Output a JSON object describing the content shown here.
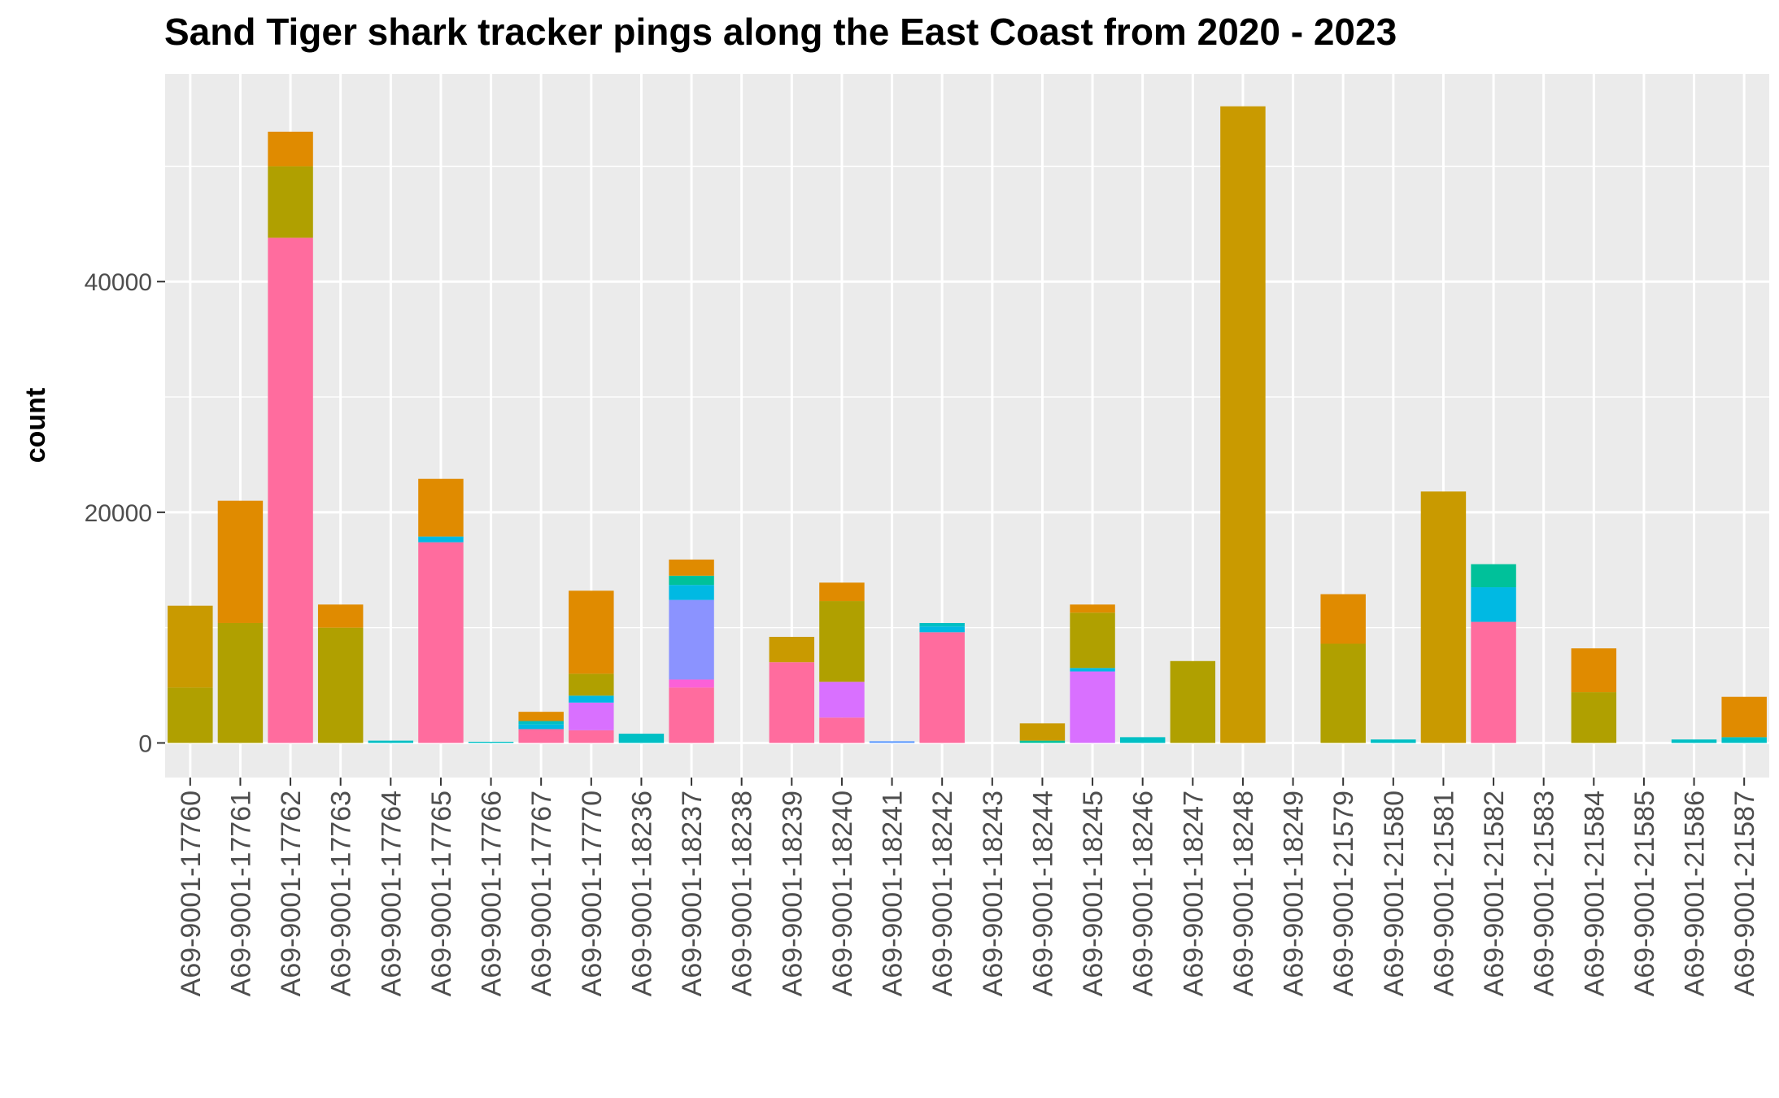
{
  "chart_data": {
    "type": "bar",
    "stacked": true,
    "title": "Sand Tiger shark tracker pings along the East Coast from 2020 - 2023",
    "xlabel": "",
    "ylabel": "count",
    "ylim": [
      -3000,
      58000
    ],
    "yticks": [
      0,
      20000,
      40000
    ],
    "grid": true,
    "legend": "none",
    "categories": [
      "A69-9001-17760",
      "A69-9001-17761",
      "A69-9001-17762",
      "A69-9001-17763",
      "A69-9001-17764",
      "A69-9001-17765",
      "A69-9001-17766",
      "A69-9001-17767",
      "A69-9001-17770",
      "A69-9001-18236",
      "A69-9001-18237",
      "A69-9001-18238",
      "A69-9001-18239",
      "A69-9001-18240",
      "A69-9001-18241",
      "A69-9001-18242",
      "A69-9001-18243",
      "A69-9001-18244",
      "A69-9001-18245",
      "A69-9001-18246",
      "A69-9001-18247",
      "A69-9001-18248",
      "A69-9001-18249",
      "A69-9001-21579",
      "A69-9001-21580",
      "A69-9001-21581",
      "A69-9001-21582",
      "A69-9001-21583",
      "A69-9001-21584",
      "A69-9001-21585",
      "A69-9001-21586",
      "A69-9001-21587"
    ],
    "series": [
      {
        "color": "#FF6C9E",
        "values": [
          0,
          0,
          43800,
          0,
          0,
          17400,
          0,
          1200,
          1100,
          0,
          4800,
          0,
          7000,
          2200,
          0,
          9600,
          0,
          0,
          0,
          0,
          0,
          0,
          0,
          0,
          0,
          0,
          10500,
          0,
          0,
          0,
          0,
          0
        ]
      },
      {
        "color": "#FB61D7",
        "values": [
          0,
          0,
          0,
          0,
          0,
          0,
          0,
          0,
          0,
          0,
          700,
          0,
          0,
          0,
          0,
          0,
          0,
          0,
          0,
          0,
          0,
          0,
          0,
          0,
          0,
          0,
          0,
          0,
          0,
          0,
          0,
          0
        ]
      },
      {
        "color": "#D970FF",
        "values": [
          0,
          0,
          0,
          0,
          0,
          0,
          0,
          0,
          2400,
          0,
          0,
          0,
          0,
          3100,
          0,
          0,
          0,
          0,
          6200,
          0,
          0,
          0,
          0,
          0,
          0,
          0,
          0,
          0,
          0,
          0,
          0,
          0
        ]
      },
      {
        "color": "#8B93FF",
        "values": [
          0,
          0,
          0,
          0,
          0,
          0,
          0,
          0,
          0,
          0,
          6900,
          0,
          0,
          0,
          0,
          0,
          0,
          0,
          0,
          0,
          0,
          0,
          0,
          0,
          0,
          0,
          0,
          0,
          0,
          0,
          0,
          0
        ]
      },
      {
        "color": "#619CFF",
        "values": [
          0,
          0,
          0,
          0,
          0,
          0,
          0,
          0,
          0,
          0,
          0,
          0,
          0,
          0,
          150,
          0,
          0,
          0,
          0,
          0,
          0,
          0,
          0,
          0,
          0,
          0,
          0,
          0,
          0,
          0,
          0,
          0
        ]
      },
      {
        "color": "#00B9E3",
        "values": [
          0,
          0,
          0,
          0,
          0,
          500,
          0,
          400,
          600,
          0,
          1300,
          0,
          0,
          0,
          0,
          500,
          0,
          0,
          300,
          0,
          0,
          0,
          0,
          0,
          0,
          0,
          3000,
          0,
          0,
          0,
          0,
          0
        ]
      },
      {
        "color": "#00BFC4",
        "values": [
          0,
          0,
          0,
          0,
          200,
          0,
          100,
          300,
          0,
          800,
          0,
          0,
          0,
          0,
          0,
          300,
          0,
          0,
          0,
          500,
          0,
          0,
          0,
          0,
          300,
          0,
          0,
          0,
          0,
          0,
          300,
          500
        ]
      },
      {
        "color": "#00C19A",
        "values": [
          0,
          0,
          0,
          0,
          0,
          0,
          0,
          0,
          0,
          0,
          800,
          0,
          0,
          0,
          0,
          0,
          0,
          200,
          0,
          0,
          0,
          0,
          0,
          0,
          0,
          0,
          2000,
          0,
          0,
          0,
          0,
          0
        ]
      },
      {
        "color": "#B0A000",
        "values": [
          4800,
          10400,
          6200,
          10000,
          0,
          0,
          0,
          0,
          1900,
          0,
          0,
          0,
          0,
          7000,
          0,
          0,
          0,
          0,
          4800,
          0,
          7100,
          0,
          0,
          8600,
          0,
          0,
          0,
          0,
          4400,
          0,
          0,
          0
        ]
      },
      {
        "color": "#C99A00",
        "values": [
          7100,
          0,
          0,
          0,
          0,
          0,
          0,
          0,
          0,
          0,
          0,
          0,
          2200,
          0,
          0,
          0,
          0,
          1500,
          0,
          0,
          0,
          55200,
          0,
          0,
          0,
          21800,
          0,
          0,
          0,
          0,
          0,
          0
        ]
      },
      {
        "color": "#E08B00",
        "values": [
          0,
          10600,
          3000,
          2000,
          0,
          5000,
          0,
          800,
          7200,
          0,
          1400,
          0,
          0,
          1600,
          0,
          0,
          0,
          0,
          700,
          0,
          0,
          0,
          0,
          4300,
          0,
          0,
          0,
          0,
          3800,
          0,
          0,
          3500
        ]
      }
    ]
  }
}
